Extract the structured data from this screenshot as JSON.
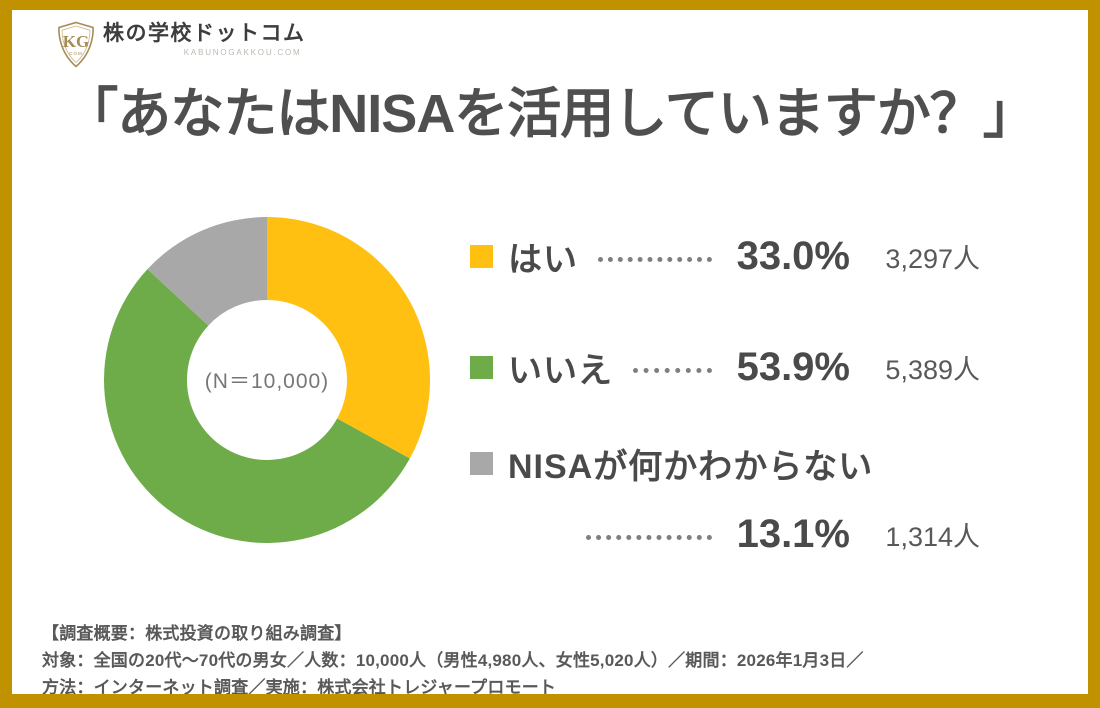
{
  "logo": {
    "name": "株の学校ドットコム",
    "domain": "KABUNOGAKKOU.COM",
    "monogram": "KG",
    "monogram_sub": "COM",
    "gold": "#a68c55"
  },
  "title": "「あなたはNISAを活用していますか？」",
  "chart_data": {
    "type": "pie",
    "donut": true,
    "title": "あなたはNISAを活用していますか？",
    "center_label": "(N＝10,000)",
    "total_responses": 10000,
    "legend_position": "right",
    "series": [
      {
        "key": "yes",
        "label": "はい",
        "percent": 33.0,
        "percent_label": "33.0%",
        "count": 3297,
        "count_label": "3,297人",
        "color": "#FFC011"
      },
      {
        "key": "no",
        "label": "いいえ",
        "percent": 53.9,
        "percent_label": "53.9%",
        "count": 5389,
        "count_label": "5,389人",
        "color": "#6EAC49"
      },
      {
        "key": "unknown",
        "label": "NISAが何かわからない",
        "percent": 13.1,
        "percent_label": "13.1%",
        "count": 1314,
        "count_label": "1,314人",
        "color": "#A8A8A8"
      }
    ]
  },
  "footer": {
    "lines": [
      "【調査概要：株式投資の取り組み調査】",
      "対象：全国の20代～70代の男女／人数：10,000人（男性4,980人、女性5,020人）／期間：2026年1月3日／",
      "方法：インターネット調査／実施：株式会社トレジャープロモート"
    ]
  },
  "colors": {
    "frame_border": "#C09200",
    "title_text": "#4f4f4f",
    "body_text": "#595959",
    "dots": "#7f7f7f"
  }
}
